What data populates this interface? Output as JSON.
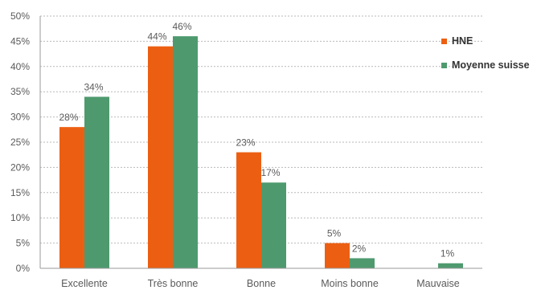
{
  "chart_data": {
    "type": "bar",
    "categories": [
      "Excellente",
      "Très bonne",
      "Bonne",
      "Moins bonne",
      "Mauvaise"
    ],
    "series": [
      {
        "name": "HNE",
        "values": [
          28,
          44,
          23,
          5,
          null
        ],
        "labels": [
          "28%",
          "44%",
          "23%",
          "5%",
          ""
        ],
        "color": "#ec5f12"
      },
      {
        "name": "Moyenne suisse",
        "values": [
          34,
          46,
          17,
          2,
          1
        ],
        "labels": [
          "34%",
          "46%",
          "17%",
          "2%",
          "1%"
        ],
        "color": "#4e9a6e"
      }
    ],
    "title": "",
    "xlabel": "",
    "ylabel": "",
    "ylim": [
      0,
      50
    ],
    "yticks": [
      "0%",
      "5%",
      "10%",
      "15%",
      "20%",
      "25%",
      "30%",
      "35%",
      "40%",
      "45%",
      "50%"
    ],
    "grid": true,
    "legend_position": "right"
  }
}
